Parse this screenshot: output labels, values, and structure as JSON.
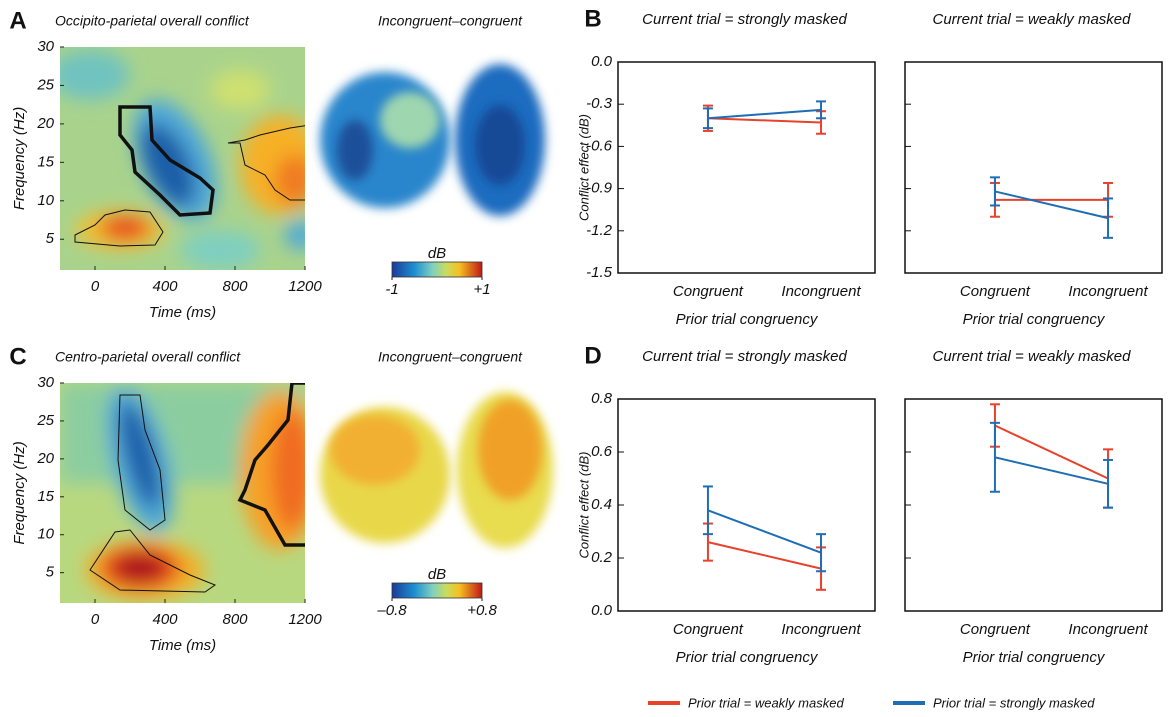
{
  "series": [
    {
      "name": "Prior trial = weakly masked",
      "color": "#e8412c"
    },
    {
      "name": "Prior trial = strongly masked",
      "color": "#1f6db5"
    }
  ],
  "chart_data": [
    {
      "type": "heatmap",
      "label": "A",
      "title": "Occipito-parietal overall conflict",
      "xlabel": "Time (ms)",
      "ylabel": "Frequency (Hz)",
      "xlim": [
        -200,
        1200
      ],
      "ylim": [
        1,
        30
      ],
      "xticks": [
        0,
        400,
        800,
        1200
      ],
      "yticks": [
        5,
        10,
        15,
        20,
        25,
        30
      ],
      "map_title": "Incongruent–congruent",
      "colorbar_label": "dB",
      "colorbar_lim": [
        -1,
        1
      ],
      "colorbar_ticks": [
        -1,
        {
          "value": 1,
          "label": "+1"
        }
      ]
    },
    {
      "type": "line",
      "label": "B",
      "ylabel": "Conflict effect (dB)",
      "xlabel": "Prior trial congruency",
      "categories": [
        "Congruent",
        "Incongruent"
      ],
      "ylim": [
        -1.5,
        0
      ],
      "yticks": [
        {
          "value": 0,
          "label": "0.0"
        },
        -0.3,
        -0.6,
        -0.9,
        -1.2,
        -1.5
      ],
      "panels": [
        {
          "title": "Current trial  = strongly masked",
          "series": [
            {
              "values": [
                -0.4,
                -0.43
              ],
              "errors": [
                0.09,
                0.08
              ]
            },
            {
              "values": [
                -0.4,
                -0.34
              ],
              "errors": [
                0.07,
                0.06
              ]
            }
          ]
        },
        {
          "title": "Current trial  = weakly masked",
          "series": [
            {
              "values": [
                -0.98,
                -0.98
              ],
              "errors": [
                0.12,
                0.12
              ]
            },
            {
              "values": [
                -0.92,
                -1.11
              ],
              "errors": [
                0.1,
                0.14
              ]
            }
          ]
        }
      ]
    },
    {
      "type": "heatmap",
      "label": "C",
      "title": "Centro-parietal overall conflict",
      "xlabel": "Time (ms)",
      "ylabel": "Frequency (Hz)",
      "xlim": [
        -200,
        1200
      ],
      "ylim": [
        1,
        30
      ],
      "xticks": [
        0,
        400,
        800,
        1200
      ],
      "yticks": [
        5,
        10,
        15,
        20,
        25,
        30
      ],
      "map_title": "Incongruent–congruent",
      "colorbar_label": "dB",
      "colorbar_lim": [
        -0.8,
        0.8
      ],
      "colorbar_ticks": [
        {
          "value": -0.8,
          "label": "–0.8"
        },
        {
          "value": 0.8,
          "label": "+0.8"
        }
      ]
    },
    {
      "type": "line",
      "label": "D",
      "ylabel": "Conflict effect (dB)",
      "xlabel": "Prior trial congruency",
      "categories": [
        "Congruent",
        "Incongruent"
      ],
      "ylim": [
        0,
        0.8
      ],
      "yticks": [
        {
          "value": 0,
          "label": "0.0"
        },
        0.2,
        0.4,
        0.6,
        0.8
      ],
      "panels": [
        {
          "title": "Current trial  = strongly masked",
          "series": [
            {
              "values": [
                0.26,
                0.16
              ],
              "errors": [
                0.07,
                0.08
              ]
            },
            {
              "values": [
                0.38,
                0.22
              ],
              "errors": [
                0.09,
                0.07
              ]
            }
          ]
        },
        {
          "title": "Current trial  = weakly masked",
          "series": [
            {
              "values": [
                0.7,
                0.5
              ],
              "errors": [
                0.08,
                0.11
              ]
            },
            {
              "values": [
                0.58,
                0.48
              ],
              "errors": [
                0.13,
                0.09
              ]
            }
          ]
        }
      ]
    }
  ]
}
